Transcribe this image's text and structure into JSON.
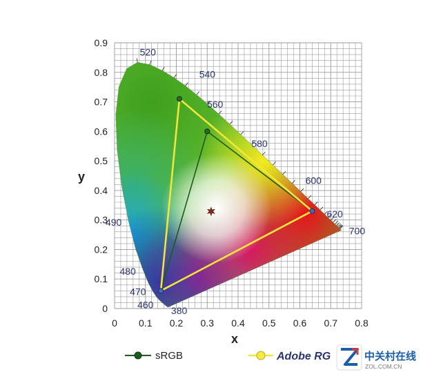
{
  "chart_data": {
    "type": "scatter",
    "title": "",
    "xlabel": "x",
    "ylabel": "y",
    "xlim": [
      0,
      0.8
    ],
    "ylim": [
      0,
      0.9
    ],
    "x_ticks": [
      "0",
      "0.1",
      "0.2",
      "0.3",
      "0.4",
      "0.5",
      "0.6",
      "0.7",
      "0.8"
    ],
    "y_ticks": [
      "0",
      "0.1",
      "0.2",
      "0.3",
      "0.4",
      "0.5",
      "0.6",
      "0.7",
      "0.8",
      "0.9"
    ],
    "grid": true,
    "spectral_locus_labels": [
      {
        "nm": "380",
        "x": 0.1741,
        "y": 0.005
      },
      {
        "nm": "460",
        "x": 0.144,
        "y": 0.0297
      },
      {
        "nm": "470",
        "x": 0.1241,
        "y": 0.0578
      },
      {
        "nm": "480",
        "x": 0.0913,
        "y": 0.1327
      },
      {
        "nm": "490",
        "x": 0.0454,
        "y": 0.295
      },
      {
        "nm": "520",
        "x": 0.0743,
        "y": 0.8338
      },
      {
        "nm": "540",
        "x": 0.2296,
        "y": 0.7543
      },
      {
        "nm": "560",
        "x": 0.3731,
        "y": 0.6245
      },
      {
        "nm": "580",
        "x": 0.5125,
        "y": 0.4866
      },
      {
        "nm": "600",
        "x": 0.627,
        "y": 0.3725
      },
      {
        "nm": "620",
        "x": 0.6915,
        "y": 0.3083
      },
      {
        "nm": "700",
        "x": 0.7347,
        "y": 0.2653
      }
    ],
    "series": [
      {
        "name": "sRGB",
        "color": "#1e5a1e",
        "points": [
          {
            "x": 0.64,
            "y": 0.33
          },
          {
            "x": 0.3,
            "y": 0.6
          },
          {
            "x": 0.15,
            "y": 0.06
          }
        ]
      },
      {
        "name": "Adobe RGB",
        "color": "#f2e63a",
        "points": [
          {
            "x": 0.64,
            "y": 0.33
          },
          {
            "x": 0.21,
            "y": 0.71
          },
          {
            "x": 0.15,
            "y": 0.06
          }
        ]
      }
    ],
    "white_point": {
      "x": 0.3127,
      "y": 0.329
    },
    "legend_placement": "bottom"
  },
  "legend": {
    "srgb_label": "sRGB",
    "adobe_label": "Adobe RG"
  },
  "watermark": {
    "cn": "中关村在线",
    "en": "ZOL.COM.CN"
  },
  "colors": {
    "grid": "#9a9a9a",
    "srgb": "#1e5a1e",
    "adobe": "#f2e63a",
    "label_blue": "#2a3570"
  }
}
